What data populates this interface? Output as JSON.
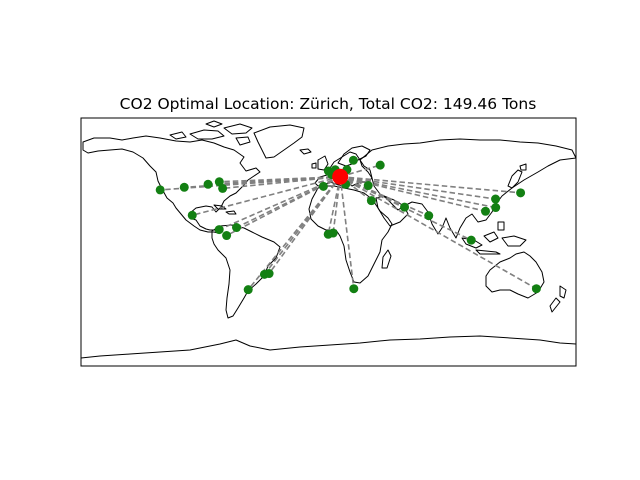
{
  "title": "CO2 Optimal Location: Zürich, Total CO2: 149.46 Tons",
  "optimal": {
    "name": "Zürich",
    "lon": 8.5,
    "lat": 47.4,
    "color": "#ff0000"
  },
  "site_color": "#138013",
  "route_color": "#808080",
  "projection": "PlateCarree",
  "extent": {
    "lon": [
      -180,
      180
    ],
    "lat": [
      -90,
      90
    ]
  },
  "sites": [
    {
      "lon": -122.4,
      "lat": 37.8
    },
    {
      "lon": -104.9,
      "lat": 39.7
    },
    {
      "lon": -87.6,
      "lat": 41.9
    },
    {
      "lon": -79.4,
      "lat": 43.7
    },
    {
      "lon": -77.0,
      "lat": 38.9
    },
    {
      "lon": -99.1,
      "lat": 19.4
    },
    {
      "lon": -79.5,
      "lat": 9.0
    },
    {
      "lon": -74.1,
      "lat": 4.7
    },
    {
      "lon": -66.9,
      "lat": 10.5
    },
    {
      "lon": -46.6,
      "lat": -23.5
    },
    {
      "lon": -43.2,
      "lat": -22.9
    },
    {
      "lon": -58.4,
      "lat": -34.6
    },
    {
      "lon": -3.7,
      "lat": 40.4
    },
    {
      "lon": -0.1,
      "lat": 51.5
    },
    {
      "lon": 2.35,
      "lat": 48.9
    },
    {
      "lon": 13.4,
      "lat": 52.5
    },
    {
      "lon": 12.5,
      "lat": 41.9
    },
    {
      "lon": 4.9,
      "lat": 52.4
    },
    {
      "lon": 18.1,
      "lat": 59.3
    },
    {
      "lon": 31.2,
      "lat": 30.0
    },
    {
      "lon": 3.4,
      "lat": 6.5
    },
    {
      "lon": -0.2,
      "lat": 5.6
    },
    {
      "lon": 18.4,
      "lat": -33.9
    },
    {
      "lon": 55.3,
      "lat": 25.3
    },
    {
      "lon": 72.9,
      "lat": 19.1
    },
    {
      "lon": 103.8,
      "lat": 1.35
    },
    {
      "lon": 139.7,
      "lat": 35.7
    },
    {
      "lon": 121.5,
      "lat": 31.2
    },
    {
      "lon": 114.2,
      "lat": 22.3
    },
    {
      "lon": 121.6,
      "lat": 25.0
    },
    {
      "lon": 151.2,
      "lat": -33.9
    },
    {
      "lon": 37.6,
      "lat": 55.8
    },
    {
      "lon": 28.9,
      "lat": 41.0
    }
  ]
}
